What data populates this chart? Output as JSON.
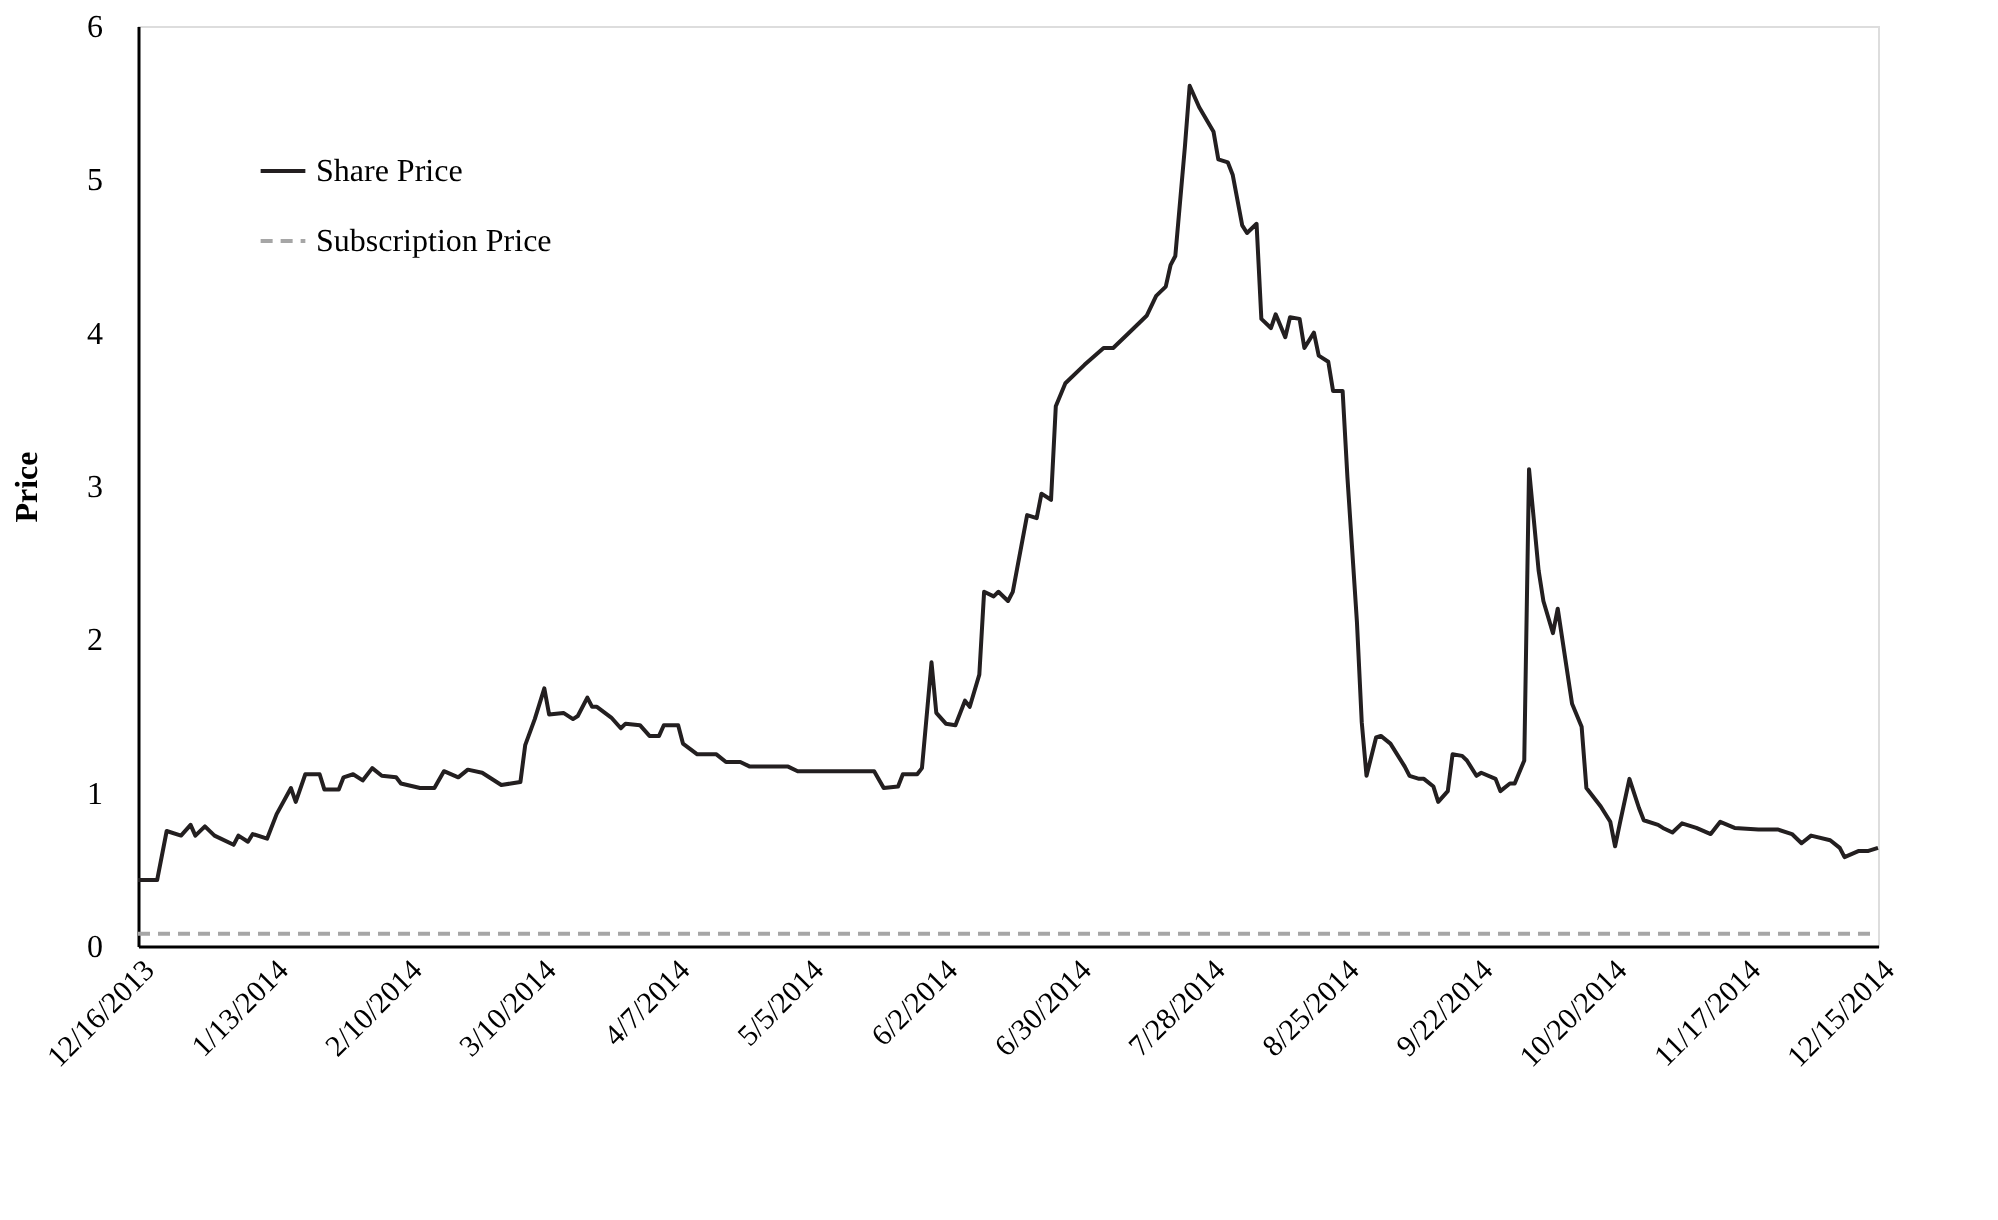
{
  "chart_data": {
    "type": "line",
    "ylabel": "Price",
    "legend": "top left",
    "grid": false,
    "xlim": [
      "2013-12-16",
      "2014-12-15"
    ],
    "xticks": [
      {
        "value": "2013-12-16",
        "label": "12/16/2013"
      },
      {
        "value": "2014-01-13",
        "label": "1/13/2014"
      },
      {
        "value": "2014-02-10",
        "label": "2/10/2014"
      },
      {
        "value": "2014-03-10",
        "label": "3/10/2014"
      },
      {
        "value": "2014-04-07",
        "label": "4/7/2014"
      },
      {
        "value": "2014-05-05",
        "label": "5/5/2014"
      },
      {
        "value": "2014-06-02",
        "label": "6/2/2014"
      },
      {
        "value": "2014-06-30",
        "label": "6/30/2014"
      },
      {
        "value": "2014-07-28",
        "label": "7/28/2014"
      },
      {
        "value": "2014-08-25",
        "label": "8/25/2014"
      },
      {
        "value": "2014-09-22",
        "label": "9/22/2014"
      },
      {
        "value": "2014-10-20",
        "label": "10/20/2014"
      },
      {
        "value": "2014-11-17",
        "label": "11/17/2014"
      },
      {
        "value": "2014-12-15",
        "label": "12/15/2014"
      }
    ],
    "ylim": [
      0,
      6
    ],
    "yticks": [
      0,
      1,
      2,
      3,
      4,
      5,
      6
    ],
    "series": [
      {
        "name": "Share Price",
        "color": "#231f20",
        "line_style": "solid",
        "x": [
          "2013-12-16",
          "2013-12-20",
          "2013-12-22",
          "2013-12-25",
          "2013-12-27",
          "2013-12-28",
          "2013-12-30",
          "2014-01-01",
          "2014-01-05",
          "2014-01-06",
          "2014-01-08",
          "2014-01-09",
          "2014-01-12",
          "2014-01-14",
          "2014-01-17",
          "2014-01-18",
          "2014-01-20",
          "2014-01-23",
          "2014-01-24",
          "2014-01-27",
          "2014-01-28",
          "2014-01-30",
          "2014-02-01",
          "2014-02-03",
          "2014-02-05",
          "2014-02-08",
          "2014-02-09",
          "2014-02-13",
          "2014-02-16",
          "2014-02-18",
          "2014-02-21",
          "2014-02-23",
          "2014-02-26",
          "2014-03-02",
          "2014-03-04",
          "2014-03-06",
          "2014-03-07",
          "2014-03-09",
          "2014-03-11",
          "2014-03-12",
          "2014-03-15",
          "2014-03-17",
          "2014-03-18",
          "2014-03-20",
          "2014-03-21",
          "2014-03-22",
          "2014-03-25",
          "2014-03-27",
          "2014-03-28",
          "2014-03-31",
          "2014-04-02",
          "2014-04-04",
          "2014-04-05",
          "2014-04-08",
          "2014-04-09",
          "2014-04-12",
          "2014-04-16",
          "2014-04-18",
          "2014-04-21",
          "2014-04-23",
          "2014-05-01",
          "2014-05-03",
          "2014-05-19",
          "2014-05-21",
          "2014-05-24",
          "2014-05-25",
          "2014-05-28",
          "2014-05-29",
          "2014-05-31",
          "2014-06-01",
          "2014-06-03",
          "2014-06-05",
          "2014-06-07",
          "2014-06-08",
          "2014-06-10",
          "2014-06-11",
          "2014-06-13",
          "2014-06-14",
          "2014-06-16",
          "2014-06-17",
          "2014-06-20",
          "2014-06-22",
          "2014-06-23",
          "2014-06-25",
          "2014-06-26",
          "2014-06-28",
          "2014-07-02",
          "2014-07-06",
          "2014-07-08",
          "2014-07-11",
          "2014-07-13",
          "2014-07-15",
          "2014-07-17",
          "2014-07-19",
          "2014-07-20",
          "2014-07-21",
          "2014-07-23",
          "2014-07-24",
          "2014-07-26",
          "2014-07-29",
          "2014-07-30",
          "2014-08-01",
          "2014-08-02",
          "2014-08-04",
          "2014-08-05",
          "2014-08-07",
          "2014-08-08",
          "2014-08-10",
          "2014-08-11",
          "2014-08-13",
          "2014-08-14",
          "2014-08-16",
          "2014-08-17",
          "2014-08-19",
          "2014-08-20",
          "2014-08-22",
          "2014-08-23",
          "2014-08-25",
          "2014-08-26",
          "2014-08-28",
          "2014-08-29",
          "2014-08-30",
          "2014-09-01",
          "2014-09-02",
          "2014-09-04",
          "2014-09-07",
          "2014-09-08",
          "2014-09-10",
          "2014-09-11",
          "2014-09-13",
          "2014-09-14",
          "2014-09-16",
          "2014-09-17",
          "2014-09-19",
          "2014-09-20",
          "2014-09-22",
          "2014-09-23",
          "2014-09-26",
          "2014-09-27",
          "2014-09-29",
          "2014-09-30",
          "2014-10-02",
          "2014-10-03",
          "2014-10-05",
          "2014-10-06",
          "2014-10-08",
          "2014-10-09",
          "2014-10-12",
          "2014-10-14",
          "2014-10-15",
          "2014-10-18",
          "2014-10-20",
          "2014-10-21",
          "2014-10-22",
          "2014-10-24",
          "2014-10-26",
          "2014-10-27",
          "2014-10-30",
          "2014-10-31",
          "2014-11-02",
          "2014-11-04",
          "2014-11-07",
          "2014-11-10",
          "2014-11-12",
          "2014-11-15",
          "2014-11-20",
          "2014-11-24",
          "2014-11-27",
          "2014-11-29",
          "2014-12-01",
          "2014-12-05",
          "2014-12-07",
          "2014-12-08",
          "2014-12-11",
          "2014-12-13",
          "2014-12-15"
        ],
        "values": [
          0.43,
          0.43,
          0.75,
          0.72,
          0.79,
          0.72,
          0.78,
          0.72,
          0.66,
          0.72,
          0.68,
          0.73,
          0.7,
          0.86,
          1.03,
          0.94,
          1.12,
          1.12,
          1.02,
          1.02,
          1.1,
          1.12,
          1.08,
          1.16,
          1.11,
          1.1,
          1.06,
          1.03,
          1.03,
          1.14,
          1.1,
          1.15,
          1.13,
          1.05,
          1.06,
          1.07,
          1.31,
          1.48,
          1.68,
          1.51,
          1.52,
          1.48,
          1.5,
          1.62,
          1.56,
          1.56,
          1.49,
          1.42,
          1.45,
          1.44,
          1.37,
          1.37,
          1.44,
          1.44,
          1.32,
          1.25,
          1.25,
          1.2,
          1.2,
          1.17,
          1.17,
          1.14,
          1.14,
          1.03,
          1.04,
          1.12,
          1.12,
          1.16,
          1.85,
          1.52,
          1.45,
          1.44,
          1.6,
          1.56,
          1.77,
          2.31,
          2.28,
          2.31,
          2.25,
          2.31,
          2.81,
          2.79,
          2.95,
          2.91,
          3.52,
          3.67,
          3.79,
          3.9,
          3.9,
          3.99,
          4.05,
          4.11,
          4.24,
          4.3,
          4.44,
          4.5,
          5.21,
          5.61,
          5.47,
          5.31,
          5.13,
          5.11,
          5.03,
          4.7,
          4.65,
          4.71,
          4.09,
          4.03,
          4.12,
          3.97,
          4.1,
          4.09,
          3.9,
          4.0,
          3.85,
          3.81,
          3.62,
          3.62,
          3.06,
          2.11,
          1.46,
          1.11,
          1.36,
          1.37,
          1.32,
          1.17,
          1.11,
          1.09,
          1.09,
          1.04,
          0.94,
          1.01,
          1.25,
          1.24,
          1.21,
          1.11,
          1.13,
          1.09,
          1.01,
          1.06,
          1.06,
          1.21,
          3.11,
          2.45,
          2.25,
          2.04,
          2.2,
          1.58,
          1.43,
          1.03,
          0.91,
          0.81,
          0.65,
          0.8,
          1.09,
          0.9,
          0.82,
          0.79,
          0.77,
          0.74,
          0.8,
          0.77,
          0.73,
          0.81,
          0.77,
          0.76,
          0.76,
          0.73,
          0.67,
          0.72,
          0.69,
          0.64,
          0.58,
          0.62,
          0.62,
          0.64
        ]
      },
      {
        "name": "Subscription Price",
        "color": "#a6a6a6",
        "line_style": "dashed",
        "x": [
          "2013-12-16",
          "2014-12-15"
        ],
        "values": [
          0.08,
          0.08
        ]
      }
    ]
  }
}
